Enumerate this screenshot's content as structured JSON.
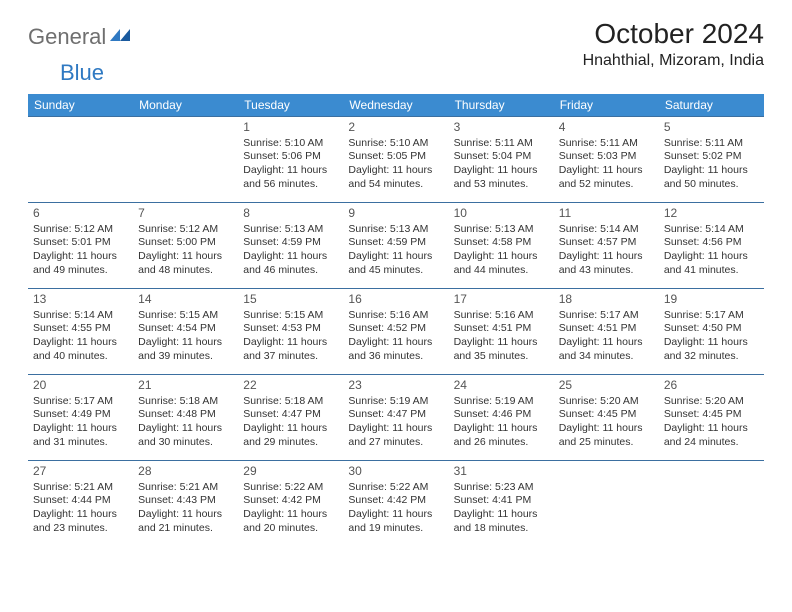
{
  "logo": {
    "text1": "General",
    "text2": "Blue"
  },
  "title": "October 2024",
  "location": "Hnahthial, Mizoram, India",
  "colors": {
    "header_bg": "#3b8bd0",
    "header_fg": "#ffffff",
    "cell_border": "#3b6fa0",
    "logo_gray": "#6f6f6f",
    "logo_blue": "#2f79c2"
  },
  "dayNames": [
    "Sunday",
    "Monday",
    "Tuesday",
    "Wednesday",
    "Thursday",
    "Friday",
    "Saturday"
  ],
  "startDayIndex": 2,
  "daysInMonth": 31,
  "cells": {
    "1": {
      "sunrise": "5:10 AM",
      "sunset": "5:06 PM",
      "daylight": "11 hours and 56 minutes."
    },
    "2": {
      "sunrise": "5:10 AM",
      "sunset": "5:05 PM",
      "daylight": "11 hours and 54 minutes."
    },
    "3": {
      "sunrise": "5:11 AM",
      "sunset": "5:04 PM",
      "daylight": "11 hours and 53 minutes."
    },
    "4": {
      "sunrise": "5:11 AM",
      "sunset": "5:03 PM",
      "daylight": "11 hours and 52 minutes."
    },
    "5": {
      "sunrise": "5:11 AM",
      "sunset": "5:02 PM",
      "daylight": "11 hours and 50 minutes."
    },
    "6": {
      "sunrise": "5:12 AM",
      "sunset": "5:01 PM",
      "daylight": "11 hours and 49 minutes."
    },
    "7": {
      "sunrise": "5:12 AM",
      "sunset": "5:00 PM",
      "daylight": "11 hours and 48 minutes."
    },
    "8": {
      "sunrise": "5:13 AM",
      "sunset": "4:59 PM",
      "daylight": "11 hours and 46 minutes."
    },
    "9": {
      "sunrise": "5:13 AM",
      "sunset": "4:59 PM",
      "daylight": "11 hours and 45 minutes."
    },
    "10": {
      "sunrise": "5:13 AM",
      "sunset": "4:58 PM",
      "daylight": "11 hours and 44 minutes."
    },
    "11": {
      "sunrise": "5:14 AM",
      "sunset": "4:57 PM",
      "daylight": "11 hours and 43 minutes."
    },
    "12": {
      "sunrise": "5:14 AM",
      "sunset": "4:56 PM",
      "daylight": "11 hours and 41 minutes."
    },
    "13": {
      "sunrise": "5:14 AM",
      "sunset": "4:55 PM",
      "daylight": "11 hours and 40 minutes."
    },
    "14": {
      "sunrise": "5:15 AM",
      "sunset": "4:54 PM",
      "daylight": "11 hours and 39 minutes."
    },
    "15": {
      "sunrise": "5:15 AM",
      "sunset": "4:53 PM",
      "daylight": "11 hours and 37 minutes."
    },
    "16": {
      "sunrise": "5:16 AM",
      "sunset": "4:52 PM",
      "daylight": "11 hours and 36 minutes."
    },
    "17": {
      "sunrise": "5:16 AM",
      "sunset": "4:51 PM",
      "daylight": "11 hours and 35 minutes."
    },
    "18": {
      "sunrise": "5:17 AM",
      "sunset": "4:51 PM",
      "daylight": "11 hours and 34 minutes."
    },
    "19": {
      "sunrise": "5:17 AM",
      "sunset": "4:50 PM",
      "daylight": "11 hours and 32 minutes."
    },
    "20": {
      "sunrise": "5:17 AM",
      "sunset": "4:49 PM",
      "daylight": "11 hours and 31 minutes."
    },
    "21": {
      "sunrise": "5:18 AM",
      "sunset": "4:48 PM",
      "daylight": "11 hours and 30 minutes."
    },
    "22": {
      "sunrise": "5:18 AM",
      "sunset": "4:47 PM",
      "daylight": "11 hours and 29 minutes."
    },
    "23": {
      "sunrise": "5:19 AM",
      "sunset": "4:47 PM",
      "daylight": "11 hours and 27 minutes."
    },
    "24": {
      "sunrise": "5:19 AM",
      "sunset": "4:46 PM",
      "daylight": "11 hours and 26 minutes."
    },
    "25": {
      "sunrise": "5:20 AM",
      "sunset": "4:45 PM",
      "daylight": "11 hours and 25 minutes."
    },
    "26": {
      "sunrise": "5:20 AM",
      "sunset": "4:45 PM",
      "daylight": "11 hours and 24 minutes."
    },
    "27": {
      "sunrise": "5:21 AM",
      "sunset": "4:44 PM",
      "daylight": "11 hours and 23 minutes."
    },
    "28": {
      "sunrise": "5:21 AM",
      "sunset": "4:43 PM",
      "daylight": "11 hours and 21 minutes."
    },
    "29": {
      "sunrise": "5:22 AM",
      "sunset": "4:42 PM",
      "daylight": "11 hours and 20 minutes."
    },
    "30": {
      "sunrise": "5:22 AM",
      "sunset": "4:42 PM",
      "daylight": "11 hours and 19 minutes."
    },
    "31": {
      "sunrise": "5:23 AM",
      "sunset": "4:41 PM",
      "daylight": "11 hours and 18 minutes."
    }
  },
  "labels": {
    "sunrise": "Sunrise:",
    "sunset": "Sunset:",
    "daylight": "Daylight:"
  }
}
